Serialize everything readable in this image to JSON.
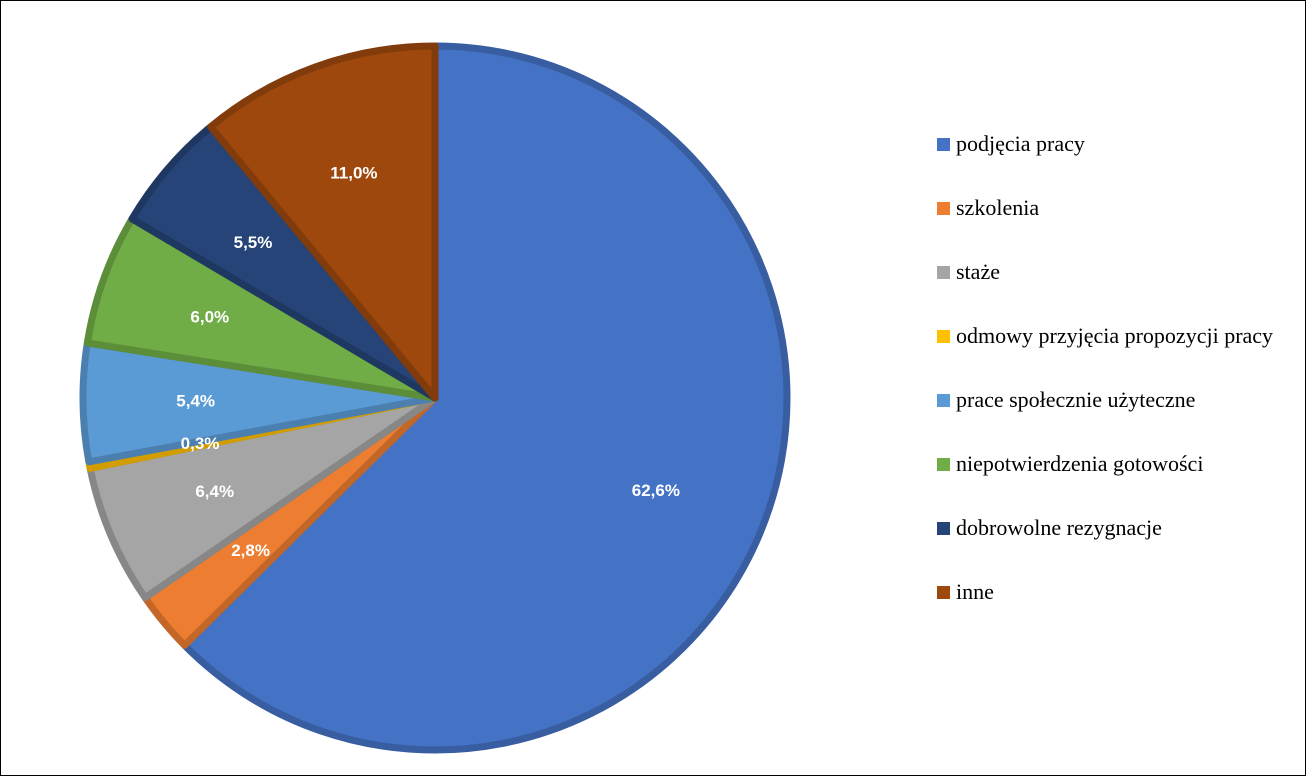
{
  "chart_data": {
    "type": "pie",
    "title": "",
    "start_angle_deg": 0,
    "direction": "clockwise",
    "slices": [
      {
        "name": "podjęcia pracy",
        "value": 62.6,
        "label": "62,6%",
        "color": "#4472C4"
      },
      {
        "name": "szkolenia",
        "value": 2.8,
        "label": "2,8%",
        "color": "#ED7D31"
      },
      {
        "name": "staże",
        "value": 6.4,
        "label": "6,4%",
        "color": "#A5A5A5"
      },
      {
        "name": "odmowy przyjęcia propozycji pracy",
        "value": 0.3,
        "label": "0,3%",
        "color": "#FFC000"
      },
      {
        "name": "prace społecznie użyteczne",
        "value": 5.4,
        "label": "5,4%",
        "color": "#5B9BD5"
      },
      {
        "name": "niepotwierdzenia gotowości",
        "value": 6.0,
        "label": "6,0%",
        "color": "#70AD47"
      },
      {
        "name": "dobrowolne rezygnacje",
        "value": 5.5,
        "label": "5,5%",
        "color": "#264478"
      },
      {
        "name": "inne",
        "value": 11.0,
        "label": "11,0%",
        "color": "#9E480E"
      }
    ],
    "legend": {
      "position": "right"
    }
  }
}
